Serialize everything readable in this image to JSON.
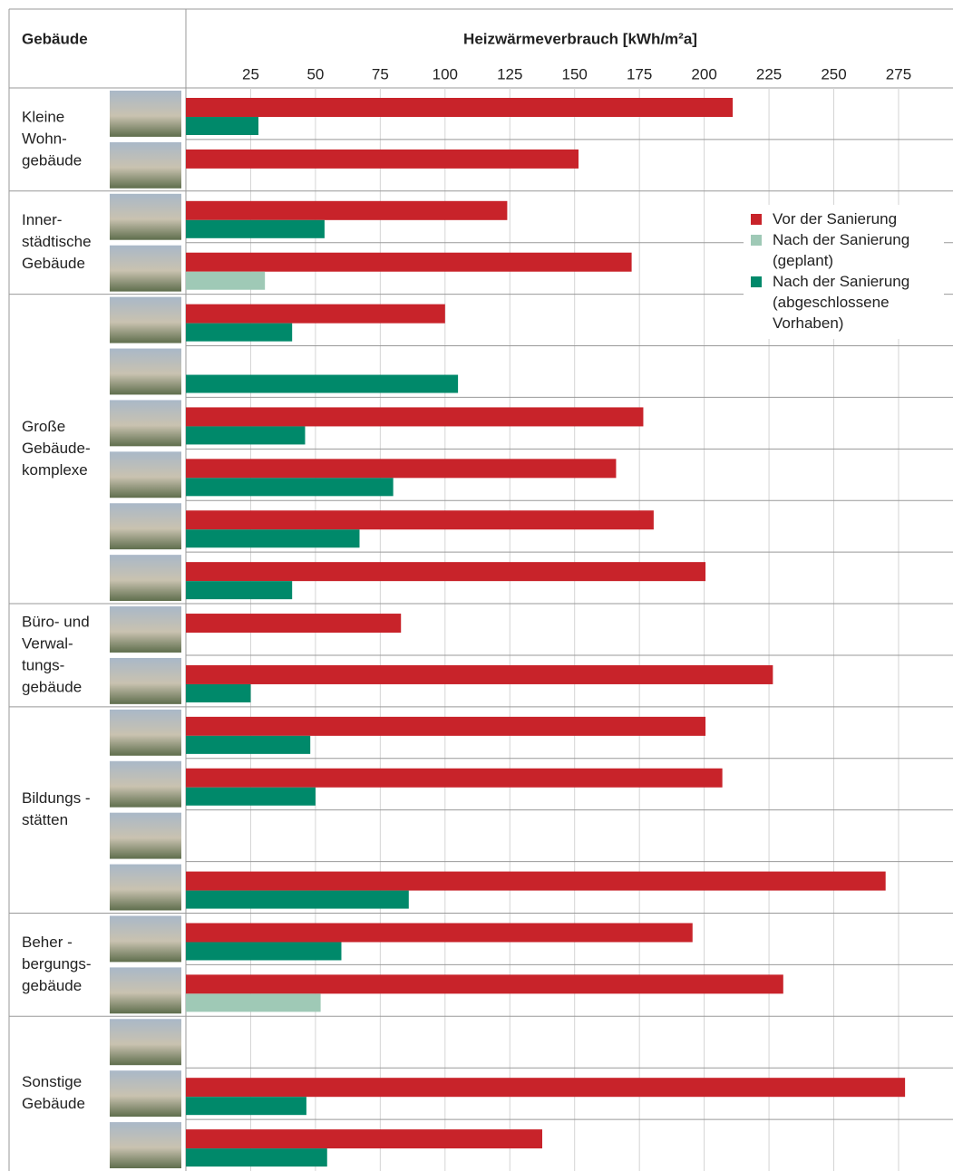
{
  "chart_data": {
    "type": "bar",
    "header": "Gebäude",
    "title": "Heizwärmeverbrauch [kWh/m²a]",
    "categories": [
      [
        "Kleine",
        "Wohn-",
        "gebäude"
      ],
      null,
      [
        "Inner-",
        "städtische",
        "Gebäude"
      ],
      null,
      [
        "Große",
        "Gebäude-",
        "komplexe"
      ],
      null,
      null,
      null,
      null,
      null,
      [
        "Büro- und",
        "Verwal-",
        "tungs-",
        "gebäude"
      ],
      null,
      [
        "Bildungs -",
        "stätten"
      ],
      null,
      null,
      null,
      [
        "Beher -",
        "bergungs-",
        "gebäude"
      ],
      null,
      [
        "Sonstige",
        "Gebäude"
      ],
      null,
      null
    ],
    "series": [
      {
        "name": "Vor der Sanierung",
        "color": "#c8232a",
        "values": [
          211,
          151.5,
          124,
          172,
          100,
          null,
          176.5,
          166,
          180.5,
          200.5,
          83,
          226.5,
          200.5,
          207,
          null,
          270,
          195.5,
          230.5,
          null,
          277.5,
          137.5
        ]
      },
      {
        "name": "Nach der Sanierung (geplant)",
        "color": "#9fc9b6",
        "values": [
          null,
          null,
          null,
          30.5,
          null,
          null,
          null,
          null,
          null,
          null,
          null,
          null,
          null,
          null,
          null,
          null,
          null,
          52,
          null,
          null,
          null
        ]
      },
      {
        "name": "Nach der Sanierung (abgeschlossene Vorhaben)",
        "color": "#00896a",
        "values": [
          28,
          null,
          53.5,
          null,
          41,
          105,
          46,
          80,
          67,
          41,
          null,
          25,
          48,
          50,
          null,
          86,
          60,
          null,
          null,
          46.5,
          54.5
        ]
      }
    ],
    "xlim": [
      0,
      296
    ],
    "xticks": [
      25,
      50,
      75,
      100,
      125,
      150,
      175,
      200,
      225,
      250,
      275
    ],
    "grid": true
  }
}
